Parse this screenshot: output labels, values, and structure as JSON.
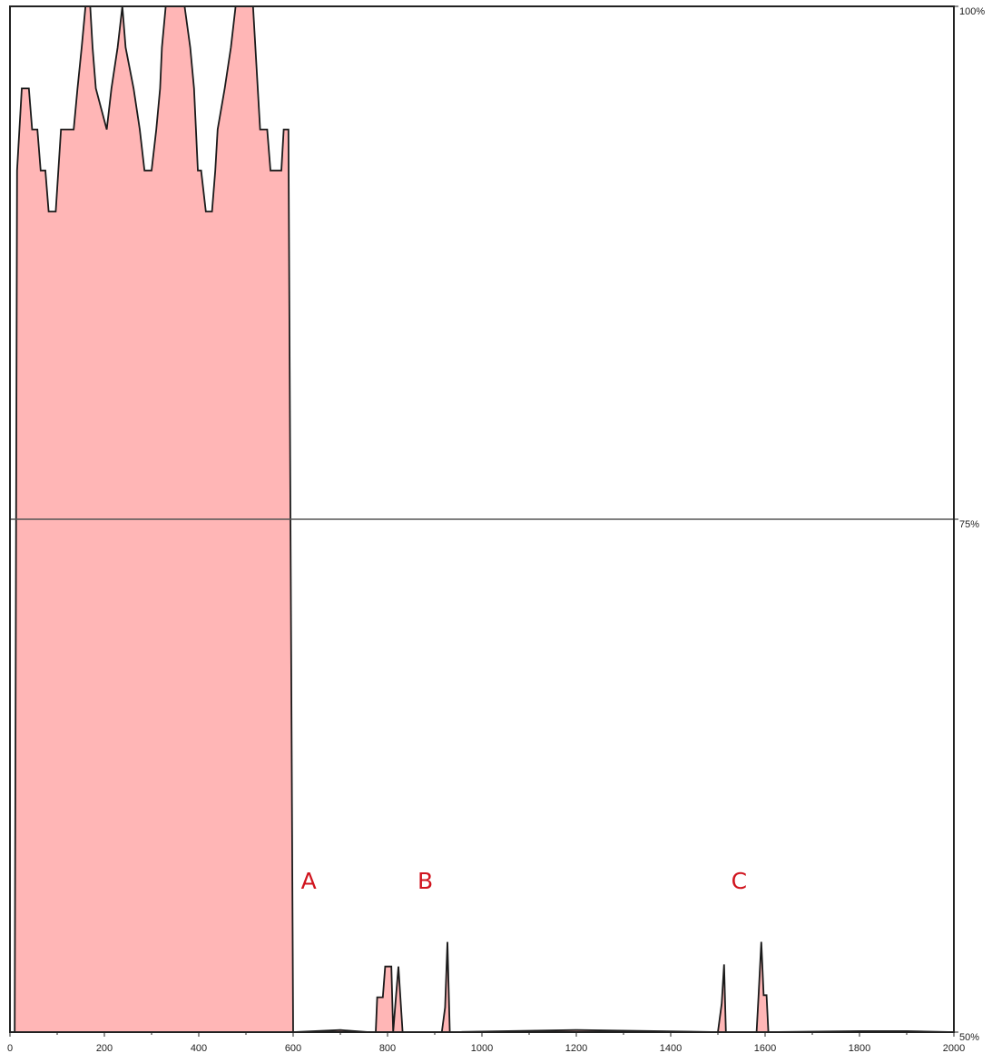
{
  "chart_data": {
    "type": "area",
    "title": "",
    "xlabel": "",
    "ylabel": "",
    "xlim": [
      0,
      2000
    ],
    "ylim": [
      50,
      100
    ],
    "x_ticks": [
      0,
      200,
      400,
      600,
      800,
      1000,
      1200,
      1400,
      1600,
      1800,
      2000
    ],
    "x_tick_labels": [
      "0",
      "200",
      "400",
      "600",
      "800",
      "1000",
      "1200",
      "1400",
      "1600",
      "1800",
      "2000"
    ],
    "y_ticks": [
      100,
      75,
      50
    ],
    "y_tick_labels": [
      "100%",
      "75%",
      "50%"
    ],
    "y_axis_side": "right",
    "gridlines": [
      75
    ],
    "colors": {
      "fill": "#ffb6b6",
      "line": "#1a1a1a",
      "annotation": "#d0141e"
    },
    "annotations": [
      {
        "text": "A",
        "x": 633,
        "y": 57.0
      },
      {
        "text": "B",
        "x": 880,
        "y": 57.0
      },
      {
        "text": "C",
        "x": 1545,
        "y": 57.0
      }
    ],
    "series": [
      {
        "values": [
          [
            0,
            50
          ],
          [
            10,
            50
          ],
          [
            15,
            92
          ],
          [
            25,
            96
          ],
          [
            40,
            96
          ],
          [
            47,
            94
          ],
          [
            58,
            94
          ],
          [
            65,
            92
          ],
          [
            75,
            92
          ],
          [
            82,
            90
          ],
          [
            97,
            90
          ],
          [
            108,
            94
          ],
          [
            135,
            94
          ],
          [
            143,
            96
          ],
          [
            152,
            98
          ],
          [
            160,
            100
          ],
          [
            170,
            100
          ],
          [
            175,
            98
          ],
          [
            182,
            96
          ],
          [
            205,
            94
          ],
          [
            215,
            96
          ],
          [
            228,
            98
          ],
          [
            238,
            100
          ],
          [
            245,
            98
          ],
          [
            262,
            96
          ],
          [
            275,
            94
          ],
          [
            285,
            92
          ],
          [
            300,
            92
          ],
          [
            310,
            94
          ],
          [
            318,
            96
          ],
          [
            322,
            98
          ],
          [
            330,
            100
          ],
          [
            370,
            100
          ],
          [
            382,
            98
          ],
          [
            390,
            96
          ],
          [
            398,
            92
          ],
          [
            405,
            92
          ],
          [
            415,
            90
          ],
          [
            428,
            90
          ],
          [
            435,
            92
          ],
          [
            440,
            94
          ],
          [
            455,
            96
          ],
          [
            468,
            98
          ],
          [
            478,
            100
          ],
          [
            515,
            100
          ],
          [
            525,
            96
          ],
          [
            530,
            94
          ],
          [
            545,
            94
          ],
          [
            552,
            92
          ],
          [
            575,
            92
          ],
          [
            580,
            94
          ],
          [
            590,
            94
          ],
          [
            600,
            50
          ],
          [
            700,
            50.1
          ],
          [
            760,
            50
          ],
          [
            775,
            50
          ],
          [
            778,
            51.7
          ],
          [
            790,
            51.7
          ],
          [
            795,
            53.2
          ],
          [
            808,
            53.2
          ],
          [
            812,
            50
          ],
          [
            818,
            51.8
          ],
          [
            823,
            53.2
          ],
          [
            832,
            50
          ],
          [
            915,
            50
          ],
          [
            922,
            51.2
          ],
          [
            927,
            54.4
          ],
          [
            932,
            50
          ],
          [
            1200,
            50.1
          ],
          [
            1500,
            50
          ],
          [
            1508,
            51.4
          ],
          [
            1513,
            53.3
          ],
          [
            1517,
            50
          ],
          [
            1582,
            50
          ],
          [
            1586,
            51.7
          ],
          [
            1592,
            54.4
          ],
          [
            1597,
            51.8
          ],
          [
            1603,
            51.8
          ],
          [
            1607,
            50
          ],
          [
            1800,
            50.05
          ],
          [
            1900,
            50.05
          ],
          [
            2000,
            50
          ]
        ]
      }
    ]
  }
}
